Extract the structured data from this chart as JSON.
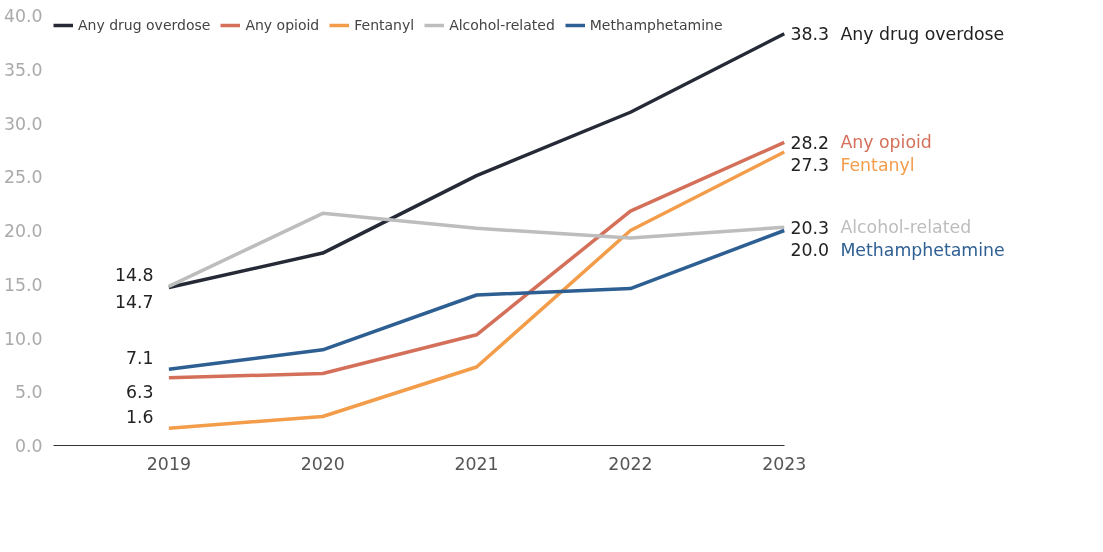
{
  "chart_data": {
    "type": "line",
    "categories": [
      "2019",
      "2020",
      "2021",
      "2022",
      "2023"
    ],
    "ylim": [
      0,
      40
    ],
    "yticks": [
      {
        "value": 0,
        "label": "0.0"
      },
      {
        "value": 5,
        "label": "5.0"
      },
      {
        "value": 10,
        "label": "10.0"
      },
      {
        "value": 15,
        "label": "15.0"
      },
      {
        "value": 20,
        "label": "20.0"
      },
      {
        "value": 25,
        "label": "25.0"
      },
      {
        "value": 30,
        "label": "30.0"
      },
      {
        "value": 35,
        "label": "35.0"
      },
      {
        "value": 40,
        "label": "40.0"
      }
    ],
    "grid": false,
    "legend": "top left",
    "marker": "none",
    "line_style": "solid",
    "series": [
      {
        "name": "Any drug overdose",
        "color": "#252a36",
        "values": [
          14.7,
          17.9,
          25.1,
          31.0,
          38.3
        ],
        "value_labels": [
          "14.7",
          null,
          null,
          null,
          "38.3"
        ]
      },
      {
        "name": "Any opioid",
        "color": "#d4705a",
        "values": [
          6.3,
          6.7,
          10.3,
          21.8,
          28.2
        ],
        "value_labels": [
          "6.3",
          null,
          null,
          null,
          "28.2"
        ]
      },
      {
        "name": "Fentanyl",
        "color": "#f39c4a",
        "values": [
          1.6,
          2.7,
          7.3,
          20.0,
          27.3
        ],
        "value_labels": [
          "1.6",
          null,
          null,
          null,
          "27.3"
        ]
      },
      {
        "name": "Alcohol-related",
        "color": "#bdbdbd",
        "values": [
          14.8,
          21.6,
          20.2,
          19.3,
          20.3
        ],
        "value_labels": [
          "14.8",
          null,
          null,
          null,
          "20.3"
        ]
      },
      {
        "name": "Methamphetamine",
        "color": "#2e5f93",
        "values": [
          7.1,
          8.9,
          14.0,
          14.6,
          20.0
        ],
        "value_labels": [
          "7.1",
          null,
          null,
          null,
          "20.0"
        ]
      }
    ]
  }
}
